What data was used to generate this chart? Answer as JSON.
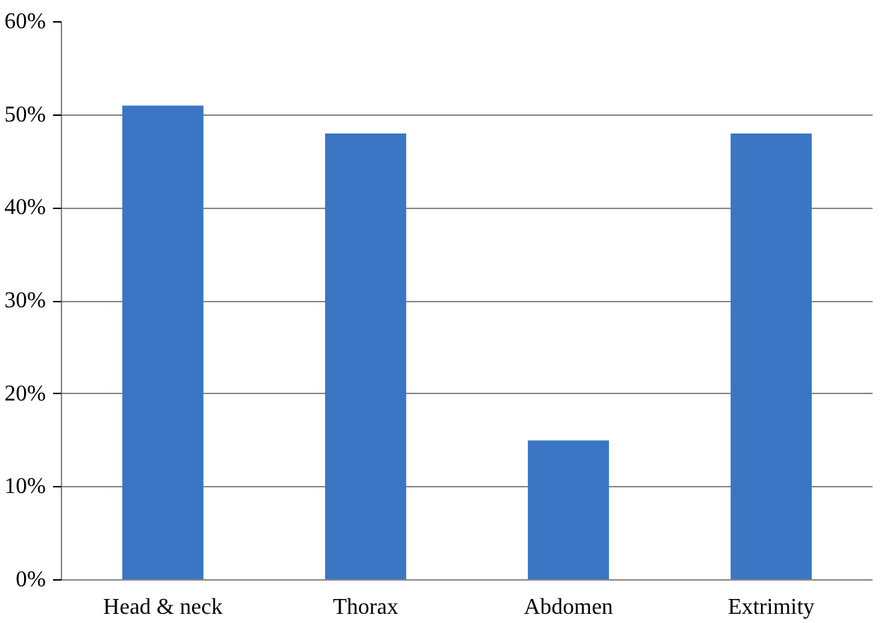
{
  "chart_data": {
    "type": "bar",
    "categories": [
      "Head & neck",
      "Thorax",
      "Abdomen",
      "Extrimity"
    ],
    "values": [
      51,
      48,
      15,
      48
    ],
    "color": "#3a76c4",
    "ylim": [
      0,
      60
    ],
    "yticks": [
      {
        "value": 0,
        "label": "0%"
      },
      {
        "value": 10,
        "label": "10%"
      },
      {
        "value": 20,
        "label": "20%"
      },
      {
        "value": 30,
        "label": "30%"
      },
      {
        "value": 40,
        "label": "40%"
      },
      {
        "value": 50,
        "label": "50%"
      },
      {
        "value": 60,
        "label": "60%"
      }
    ],
    "grid": "y"
  }
}
